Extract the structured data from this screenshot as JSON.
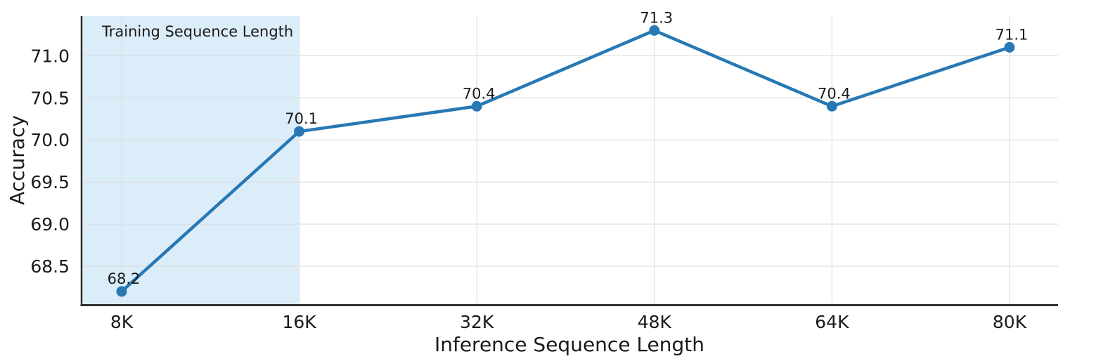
{
  "chart_data": {
    "type": "line",
    "title": "",
    "xlabel": "Inference Sequence Length",
    "ylabel": "Accuracy",
    "categories": [
      "8K",
      "16K",
      "32K",
      "48K",
      "64K",
      "80K"
    ],
    "series": [
      {
        "name": "Accuracy",
        "values": [
          68.2,
          70.1,
          70.4,
          71.3,
          70.4,
          71.1
        ]
      }
    ],
    "point_labels": [
      "68.2",
      "70.1",
      "70.4",
      "71.3",
      "70.4",
      "71.1"
    ],
    "y_ticks": [
      "68.5",
      "69.0",
      "69.5",
      "70.0",
      "70.5",
      "71.0"
    ],
    "y_tick_values": [
      68.5,
      69.0,
      69.5,
      70.0,
      70.5,
      71.0
    ],
    "ylim": [
      68.05,
      71.47
    ],
    "grid": true,
    "legend": false,
    "shaded_region": {
      "label": "Training Sequence Length",
      "covers_categories": [
        "8K",
        "16K"
      ],
      "x_end_category": "16K"
    },
    "colors": {
      "line": "#2878b4",
      "marker": "#2878b4",
      "shade": "#dcedfa",
      "grid": "#dddddd",
      "axis": "#2f2f2f",
      "text": "#1a1a1a"
    }
  }
}
